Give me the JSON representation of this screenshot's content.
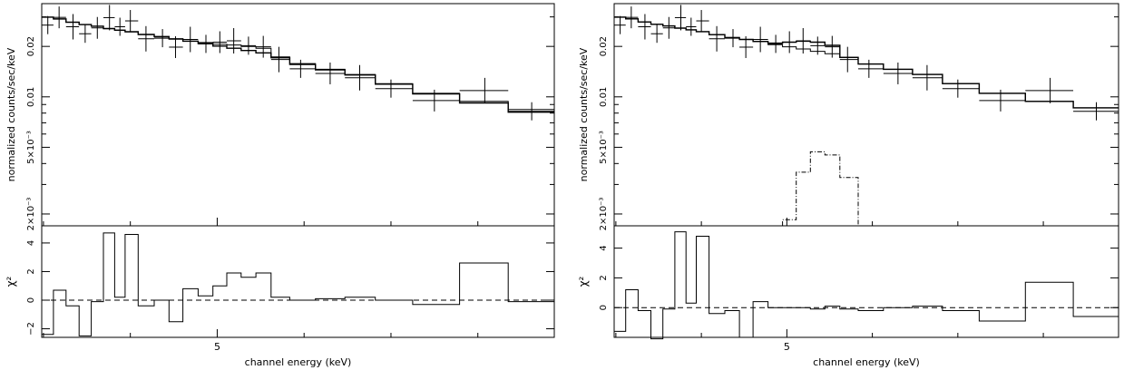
{
  "chart_data": [
    {
      "type": "step",
      "xlabel": "channel energy (keV)",
      "x_ticks": [
        5
      ],
      "x_tick_labels": [
        "5"
      ],
      "top": {
        "ylabel": "normalized counts/sec/keV",
        "log_y": true,
        "ylim": [
          0.0017,
          0.036
        ],
        "y_ticks": [
          0.02,
          0.01,
          0.005,
          0.002
        ],
        "y_tick_labels": [
          "0.02",
          "0.01",
          "5×10⁻³",
          "2×10⁻³"
        ],
        "data": [
          {
            "x": 3.05,
            "y": 0.0268
          },
          {
            "x": 3.18,
            "y": 0.0298
          },
          {
            "x": 3.34,
            "y": 0.0262
          },
          {
            "x": 3.48,
            "y": 0.0238
          },
          {
            "x": 3.62,
            "y": 0.0258
          },
          {
            "x": 3.76,
            "y": 0.0297
          },
          {
            "x": 3.88,
            "y": 0.0262
          },
          {
            "x": 4.0,
            "y": 0.0284
          },
          {
            "x": 4.18,
            "y": 0.0222
          },
          {
            "x": 4.37,
            "y": 0.0224
          },
          {
            "x": 4.52,
            "y": 0.0198
          },
          {
            "x": 4.69,
            "y": 0.022
          },
          {
            "x": 4.87,
            "y": 0.0207
          },
          {
            "x": 5.03,
            "y": 0.0212
          },
          {
            "x": 5.19,
            "y": 0.0216
          },
          {
            "x": 5.36,
            "y": 0.0202
          },
          {
            "x": 5.53,
            "y": 0.0199
          },
          {
            "x": 5.71,
            "y": 0.0167
          },
          {
            "x": 5.96,
            "y": 0.0147
          },
          {
            "x": 6.3,
            "y": 0.0138
          },
          {
            "x": 6.64,
            "y": 0.013
          },
          {
            "x": 7.0,
            "y": 0.0112
          },
          {
            "x": 7.5,
            "y": 0.0095
          },
          {
            "x": 8.08,
            "y": 0.0109
          },
          {
            "x": 8.62,
            "y": 0.0082
          }
        ],
        "models": [
          {
            "steps": [
              0.0299,
              0.0292,
              0.0279,
              0.027,
              0.0264,
              0.0256,
              0.025,
              0.0245,
              0.0236,
              0.0229,
              0.0222,
              0.0215,
              0.0208,
              0.0201,
              0.0195,
              0.0189,
              0.0183,
              0.0171,
              0.0156,
              0.0145,
              0.0135,
              0.0119,
              0.0104,
              0.0092,
              0.0081
            ]
          },
          {
            "steps": [
              0.0299,
              0.0291,
              0.0279,
              0.027,
              0.0264,
              0.0255,
              0.025,
              0.0244,
              0.0235,
              0.0228,
              0.0221,
              0.0215,
              0.0211,
              0.0206,
              0.0204,
              0.02,
              0.0195,
              0.0173,
              0.0158,
              0.0146,
              0.0136,
              0.012,
              0.0105,
              0.0094,
              0.0084
            ]
          }
        ]
      },
      "bottom": {
        "ylabel": "χ²",
        "ylim": [
          -2.6,
          5.2
        ],
        "y_ticks": [
          4,
          2,
          0,
          -2
        ],
        "y_tick_labels": [
          "4",
          "2",
          "0",
          "−2"
        ],
        "values": [
          -2.4,
          0.7,
          -0.4,
          -2.5,
          -0.1,
          4.7,
          0.2,
          4.6,
          -0.4,
          0.0,
          -1.5,
          0.8,
          0.3,
          1.0,
          1.9,
          1.6,
          1.9,
          0.2,
          0.0,
          0.1,
          0.2,
          0.0,
          -0.3,
          2.6,
          -0.1
        ]
      }
    },
    {
      "type": "step",
      "xlabel": "channel energy (keV)",
      "x_ticks": [
        5
      ],
      "x_tick_labels": [
        "5"
      ],
      "top": {
        "ylabel": "normalized counts/sec/keV",
        "log_y": true,
        "ylim": [
          0.0017,
          0.036
        ],
        "y_ticks": [
          0.02,
          0.01,
          0.005,
          0.002
        ],
        "y_tick_labels": [
          "0.02",
          "0.01",
          "5×10⁻³",
          "2×10⁻³"
        ],
        "data": [
          {
            "x": 3.05,
            "y": 0.0268
          },
          {
            "x": 3.18,
            "y": 0.0298
          },
          {
            "x": 3.34,
            "y": 0.0262
          },
          {
            "x": 3.48,
            "y": 0.0238
          },
          {
            "x": 3.62,
            "y": 0.0258
          },
          {
            "x": 3.76,
            "y": 0.0297
          },
          {
            "x": 3.88,
            "y": 0.0262
          },
          {
            "x": 4.0,
            "y": 0.0284
          },
          {
            "x": 4.18,
            "y": 0.0222
          },
          {
            "x": 4.37,
            "y": 0.0224
          },
          {
            "x": 4.52,
            "y": 0.0198
          },
          {
            "x": 4.69,
            "y": 0.022
          },
          {
            "x": 4.87,
            "y": 0.0207
          },
          {
            "x": 5.03,
            "y": 0.0212
          },
          {
            "x": 5.19,
            "y": 0.0216
          },
          {
            "x": 5.36,
            "y": 0.0202
          },
          {
            "x": 5.53,
            "y": 0.0199
          },
          {
            "x": 5.71,
            "y": 0.0167
          },
          {
            "x": 5.96,
            "y": 0.0147
          },
          {
            "x": 6.3,
            "y": 0.0138
          },
          {
            "x": 6.64,
            "y": 0.013
          },
          {
            "x": 7.0,
            "y": 0.0112
          },
          {
            "x": 7.5,
            "y": 0.0095
          },
          {
            "x": 8.08,
            "y": 0.0109
          },
          {
            "x": 8.62,
            "y": 0.0082
          }
        ],
        "models": [
          {
            "steps": [
              0.0299,
              0.0292,
              0.028,
              0.0271,
              0.0265,
              0.0257,
              0.0251,
              0.0245,
              0.0235,
              0.0226,
              0.022,
              0.0214,
              0.0209,
              0.0212,
              0.0215,
              0.0212,
              0.0203,
              0.0172,
              0.0157,
              0.0146,
              0.0136,
              0.012,
              0.0105,
              0.0094,
              0.0086
            ]
          },
          {
            "steps": [
              0.0299,
              0.0292,
              0.028,
              0.0271,
              0.0265,
              0.0257,
              0.0251,
              0.0245,
              0.0235,
              0.0226,
              0.022,
              0.0214,
              0.0205,
              0.0199,
              0.0193,
              0.0187,
              0.0181,
              0.0172,
              0.0157,
              0.0146,
              0.0136,
              0.012,
              0.0105,
              0.0094,
              0.0086
            ]
          }
        ],
        "line_component": {
          "x": [
            5.03,
            5.19,
            5.36,
            5.53,
            5.71
          ],
          "y": [
            0.00185,
            0.00355,
            0.0047,
            0.0045,
            0.0033
          ]
        }
      },
      "bottom": {
        "ylabel": "χ²",
        "ylim": [
          -2.0,
          5.5
        ],
        "y_ticks": [
          4,
          2,
          0
        ],
        "y_tick_labels": [
          "4",
          "2",
          "0"
        ],
        "values": [
          -1.6,
          1.2,
          -0.2,
          -2.1,
          -0.1,
          5.1,
          0.3,
          4.8,
          -0.4,
          -0.2,
          -2.0,
          0.4,
          0.0,
          0.0,
          0.0,
          -0.1,
          0.1,
          -0.1,
          -0.2,
          0.0,
          0.1,
          -0.2,
          -0.9,
          1.7,
          -0.6
        ]
      }
    }
  ]
}
